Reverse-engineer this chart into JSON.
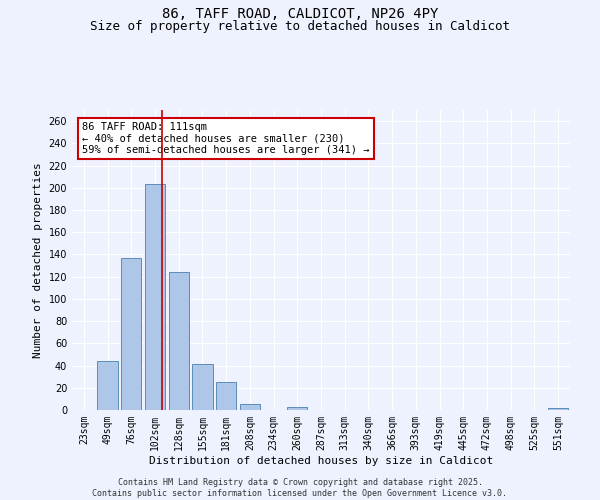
{
  "title_line1": "86, TAFF ROAD, CALDICOT, NP26 4PY",
  "title_line2": "Size of property relative to detached houses in Caldicot",
  "xlabel": "Distribution of detached houses by size in Caldicot",
  "ylabel": "Number of detached properties",
  "categories": [
    "23sqm",
    "49sqm",
    "76sqm",
    "102sqm",
    "128sqm",
    "155sqm",
    "181sqm",
    "208sqm",
    "234sqm",
    "260sqm",
    "287sqm",
    "313sqm",
    "340sqm",
    "366sqm",
    "393sqm",
    "419sqm",
    "445sqm",
    "472sqm",
    "498sqm",
    "525sqm",
    "551sqm"
  ],
  "values": [
    0,
    44,
    137,
    203,
    124,
    41,
    25,
    5,
    0,
    3,
    0,
    0,
    0,
    0,
    0,
    0,
    0,
    0,
    0,
    0,
    2
  ],
  "bar_color": "#aec6e8",
  "bar_edge_color": "#5b8db8",
  "vline_x": 3.3,
  "vline_color": "#cc0000",
  "annotation_text": "86 TAFF ROAD: 111sqm\n← 40% of detached houses are smaller (230)\n59% of semi-detached houses are larger (341) →",
  "annotation_box_facecolor": "#ffffff",
  "annotation_box_edgecolor": "#cc0000",
  "ylim": [
    0,
    270
  ],
  "yticks": [
    0,
    20,
    40,
    60,
    80,
    100,
    120,
    140,
    160,
    180,
    200,
    220,
    240,
    260
  ],
  "background_color": "#eef2ff",
  "grid_color": "#ffffff",
  "footer_line1": "Contains HM Land Registry data © Crown copyright and database right 2025.",
  "footer_line2": "Contains public sector information licensed under the Open Government Licence v3.0.",
  "title_fontsize": 10,
  "subtitle_fontsize": 9,
  "axis_label_fontsize": 8,
  "tick_fontsize": 7,
  "annotation_fontsize": 7.5,
  "footer_fontsize": 6
}
